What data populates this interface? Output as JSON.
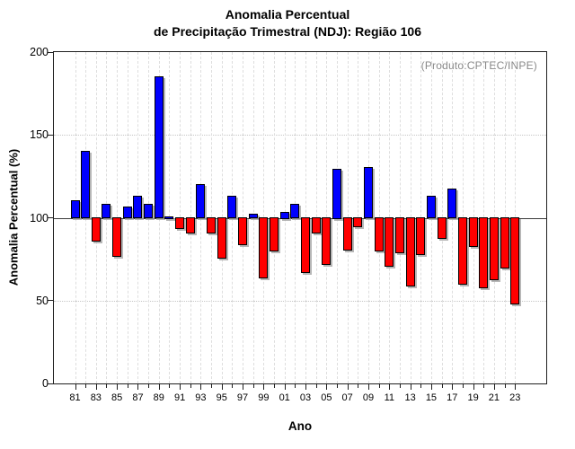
{
  "title": {
    "line1": "Anomalia Percentual",
    "line2": "de Precipitação Trimestral (NDJ): Região 106"
  },
  "annotation": "(Produto:CPTEC/INPE)",
  "axes": {
    "ylabel": "Anomalia Percentual (%)",
    "xlabel": "Ano",
    "yticks": [
      0,
      50,
      100,
      150,
      200
    ],
    "x_tick_labels": [
      "81",
      "83",
      "85",
      "87",
      "89",
      "91",
      "93",
      "95",
      "97",
      "99",
      "01",
      "03",
      "05",
      "07",
      "09",
      "11",
      "13",
      "15",
      "17",
      "19",
      "21",
      "23"
    ]
  },
  "colors": {
    "above": "#0000ff",
    "below": "#ff0000",
    "annotation": "#8a8a8a"
  },
  "chart_data": {
    "type": "bar",
    "title": "Anomalia Percentual de Precipitação Trimestral (NDJ): Região 106",
    "xlabel": "Ano",
    "ylabel": "Anomalia Percentual (%)",
    "ylim": [
      0,
      200
    ],
    "baseline": 100,
    "grid": true,
    "x": [
      1981,
      1982,
      1983,
      1984,
      1985,
      1986,
      1987,
      1988,
      1989,
      1990,
      1991,
      1992,
      1993,
      1994,
      1995,
      1996,
      1997,
      1998,
      1999,
      2000,
      2001,
      2002,
      2003,
      2004,
      2005,
      2006,
      2007,
      2008,
      2009,
      2010,
      2011,
      2012,
      2013,
      2014,
      2015,
      2016,
      2017,
      2018,
      2019,
      2020,
      2021,
      2022,
      2023
    ],
    "values": [
      110,
      140,
      86,
      108,
      77,
      106,
      113,
      108,
      185,
      100,
      94,
      91,
      120,
      91,
      76,
      113,
      84,
      102,
      64,
      80,
      103,
      108,
      67,
      91,
      72,
      129,
      81,
      95,
      130,
      80,
      71,
      79,
      59,
      78,
      113,
      88,
      117,
      60,
      83,
      58,
      63,
      70,
      48
    ],
    "series_note": "values >= 100 drawn blue (above normal), < 100 drawn red (below normal)"
  }
}
